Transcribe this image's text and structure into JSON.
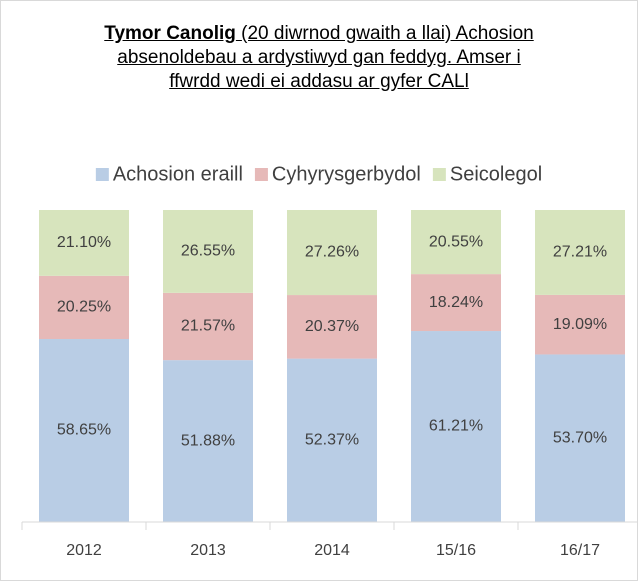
{
  "chart_data": {
    "type": "stacked_bar",
    "title": {
      "bold": "Tymor Canolig",
      "text": "(20 diwrnod gwaith a llai) Achosion absenoldebau a ardystiwyd gan feddyg. Amser i ffwrdd wedi ei addasu ar gyfer CALl"
    },
    "categories": [
      "2012",
      "2013",
      "2014",
      "15/16",
      "16/17"
    ],
    "series": [
      {
        "name": "Achosion eraill",
        "color": "#b9cde5",
        "values": [
          58.65,
          51.88,
          52.37,
          61.21,
          53.7
        ],
        "value_labels": [
          "58.65%",
          "51.88%",
          "52.37%",
          "61.21%",
          "53.70%"
        ]
      },
      {
        "name": "Cyhyrysgerbydol",
        "color": "#e6b9b8",
        "values": [
          20.25,
          21.57,
          20.37,
          18.24,
          19.09
        ],
        "value_labels": [
          "20.25%",
          "21.57%",
          "20.37%",
          "18.24%",
          "19.09%"
        ]
      },
      {
        "name": "Seicolegol",
        "color": "#d7e4bd",
        "values": [
          21.1,
          26.55,
          27.26,
          20.55,
          27.21
        ],
        "value_labels": [
          "21.10%",
          "26.55%",
          "27.26%",
          "20.55%",
          "27.21%"
        ]
      }
    ],
    "ylim": [
      0,
      100
    ],
    "legend": "top"
  }
}
